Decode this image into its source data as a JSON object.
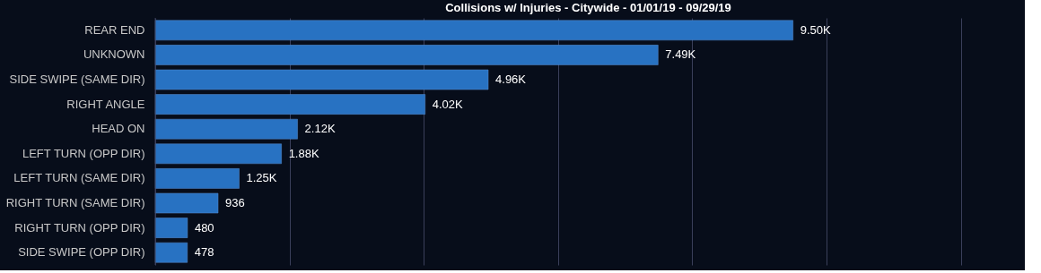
{
  "chart_data": {
    "type": "bar",
    "orientation": "horizontal",
    "title": "Collisions w/ Injuries - Citywide - 01/01/19 - 09/29/19",
    "categories": [
      "REAR END",
      "UNKNOWN",
      "SIDE SWIPE (SAME DIR)",
      "RIGHT ANGLE",
      "HEAD ON",
      "LEFT TURN (OPP DIR)",
      "LEFT TURN (SAME DIR)",
      "RIGHT TURN (SAME DIR)",
      "RIGHT TURN (OPP DIR)",
      "SIDE SWIPE (OPP DIR)"
    ],
    "values": [
      9500,
      7490,
      4960,
      4020,
      2120,
      1880,
      1250,
      936,
      480,
      478
    ],
    "value_labels": [
      "9.50K",
      "7.49K",
      "4.96K",
      "4.02K",
      "2.12K",
      "1.88K",
      "1.25K",
      "936",
      "480",
      "478"
    ],
    "color": "#2872c2",
    "xlim": [
      0,
      12900
    ],
    "xticks": [
      {
        "value": 0,
        "label": null
      },
      {
        "value": 2000,
        "label": null
      },
      {
        "value": 4000,
        "label": null
      },
      {
        "value": 6000,
        "label": null
      },
      {
        "value": 8000,
        "label": null
      },
      {
        "value": 10000,
        "label": null
      },
      {
        "value": 12000,
        "label": null
      }
    ],
    "tick_labels": "y",
    "grid": "x"
  }
}
